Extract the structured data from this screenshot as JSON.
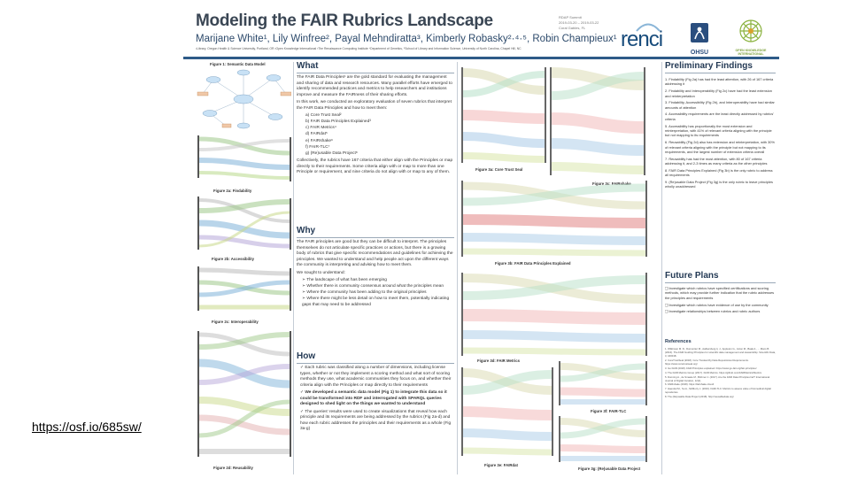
{
  "poster": {
    "title": "Modeling the FAIR Rubrics Landscape",
    "authors": "Marijane White¹, Lily Winfree², Payal Mehndiratta³, Kimberly Robasky²·⁴·⁵, Robin Champieux¹",
    "affiliations": "¹Library, Oregon Health & Science University, Portland, OR ²Open Knowledge International ³The Renaissance Computing Institute ⁴Department of Genetics, ⁵School of Library and Information Science, University of North Carolina, Chapel Hill, NC",
    "conference": [
      "RDAP Summit",
      "2019-03-20 – 2019-03-22",
      "Coral Gables, FL"
    ],
    "logos": {
      "renci": "renci",
      "ohsu": "OHSU",
      "obf": "OPEN KNOWLEDGE INTERNATIONAL"
    },
    "figures": {
      "semantic_model": "Figure 1: Semantic Data Model",
      "findability": "Figure 2a: Findability",
      "accessibility": "Figure 2b: Accessibility",
      "interoperability": "Figure 2c: Interoperability",
      "reusability": "Figure 2d: Reusability",
      "core_trust_seal": "Figure 3a: Core Trust Seal",
      "fairshake": "Figure 3c: FAIRshake",
      "fair_principles_explained": "Figure 3b: FAIR Data Principles Explained",
      "fair_metrics": "Figure 3d: FAIR Metrics",
      "fair_tlc": "Figure 3f: FAIR-TLC",
      "fairdat": "Figure 3e: FAIRdat",
      "reusable_data_project": "Figure 3g: (Re)usable Data Project"
    },
    "what": {
      "heading": "What",
      "p1": "The FAIR Data Principles¹ are the gold standard for evaluating the management and sharing of data and research resources. Many parallel efforts have emerged to identify recommended practices and metrics to help researchers and institutions improve and measure the FAIRness of their sharing efforts.",
      "p2": "In this work, we conducted an exploratory evaluation of seven rubrics that interpret the FAIR Data Principles and how to meet them:",
      "rubrics": [
        "a) Core Trust Seal²",
        "b) FAIR Data Principles Explained³",
        "c) FAIR Metrics⁴",
        "d) FAIRdat⁵",
        "e) FAIRshake⁶",
        "f) FAIR-TLC⁷",
        "g) (Re)usable Data Project⁸"
      ],
      "p3": "Collectively, the rubrics have 167 criteria that either align with the Principles or map directly to their requirements. Some criteria align with or map to more than one Principle or requirement, and nine criteria do not align with or map to any of them."
    },
    "why": {
      "heading": "Why",
      "p1": "The FAIR principles are good but they can be difficult to interpret. The principles themselves do not articulate specific practices or actions, but there is a growing body of rubrics that give specific recommendations and guidelines for achieving the principles. We wanted to understand and help people act upon the different ways the community is interpreting and advising how to meet them.",
      "p2": "We sought to understand:",
      "items": [
        "The landscape of what has been emerging",
        "Whether there is community consensus around what the principles mean",
        "Where the community has been adding to the original principles",
        "Where there might be less detail on how to meet them, potentially indicating gaps that may need to be addressed"
      ]
    },
    "how": {
      "heading": "How",
      "items": [
        "Each rubric was classified along a number of dimensions, including license types, whether or not they implement a scoring method and what sort of scoring methods they use, what academic communities they focus on, and whether their criteria align with the Principles or map directly to their requirements",
        "We developed a semantic data model (Fig 1) to integrate this data so it could be transformed into RDF and interrogated with SPARQL queries designed to shed light on the things we wanted to understand",
        "The queries' results were used to create visualizations that reveal how each principle and its requirements are being addressed by the rubrics (Fig 2a-d) and how each rubric addresses the principles and their requirements as a whole (Fig 3a-g)"
      ]
    },
    "findings": {
      "heading": "Preliminary Findings",
      "items": [
        "1. Findability (Fig 2a) has had the least attention, with 26 of 167 criteria addressing it",
        "2. Findability and Interoperability (Fig 2c) have had the least extension and reinterpretation",
        "3. Findability, Accessibility (Fig 2b), and Interoperability have had similar amounts of attention",
        "4. Accessibility requirements are the least directly addressed by rubrics' criteria",
        "5. Accessibility has proportionally the most extension and reinterpretation, with 41% of relevant criteria aligning with the principle but not mapping to its requirements",
        "6. Reusability (Fig 2d) also has extension and reinterpretation, with 30% of relevant criteria aligning with the principle but not mapping to its requirements, and the largest number of extension criteria overall",
        "7. Reusability has had the most attention, with 80 of 167 criteria addressing it, and 2-3 times as many criteria as the other principles",
        "8. FAIR Data Principles Explained (Fig 3b) is the only rubric to address all requirements",
        "9. (Re)usable Data Project (Fig 3g) is the only rubric to leave principles wholly unaddressed"
      ]
    },
    "future": {
      "heading": "Future Plans",
      "items": [
        "Investigate which rubrics have specified certifications and scoring methods, which may provide further indication that the rubric addresses the principles and requirements",
        "Investigate which rubrics have evidence of use by the community",
        "Investigate relationships between rubrics and rubric authors"
      ]
    },
    "references": {
      "heading": "References",
      "items": [
        "1. Wilkinson M. D., Dumontier M., Aalbersberg Ij. J., Appleton G., Axton M., Baak A., ... Mons B. (2016). The FAIR Guiding Principles for scientific data management and stewardship. Scientific Data, 3, 160018.",
        "2. CoreTrustSeal (2018). Core Trustworthy Data Repositories Requirements. https://www.coretrustseal.org/",
        "3. Go FAIR (2018). FAIR Principles explained. https://www.go-fair.org/fair-principles/",
        "4. The FAIR Metrics Group (2017). FAIR Metrics. https://github.com/FAIRMetrics/Metrics",
        "5. Dunning A., de Smaele M., Böhmer J. (2017). Are the FAIR Data Principles fair? International Journal of Digital Curation, 12(2).",
        "6. FAIRshake (2018). https://fairshake.cloud/",
        "7. Haendel M., Su A., McMurry J. (2016). FAIR-TLC: Metrics to assess value of biomedical digital repositories.",
        "8. The (Re)usable Data Project (2018). http://reusabledata.org/"
      ]
    },
    "link": "https://osf.io/685sw/"
  }
}
